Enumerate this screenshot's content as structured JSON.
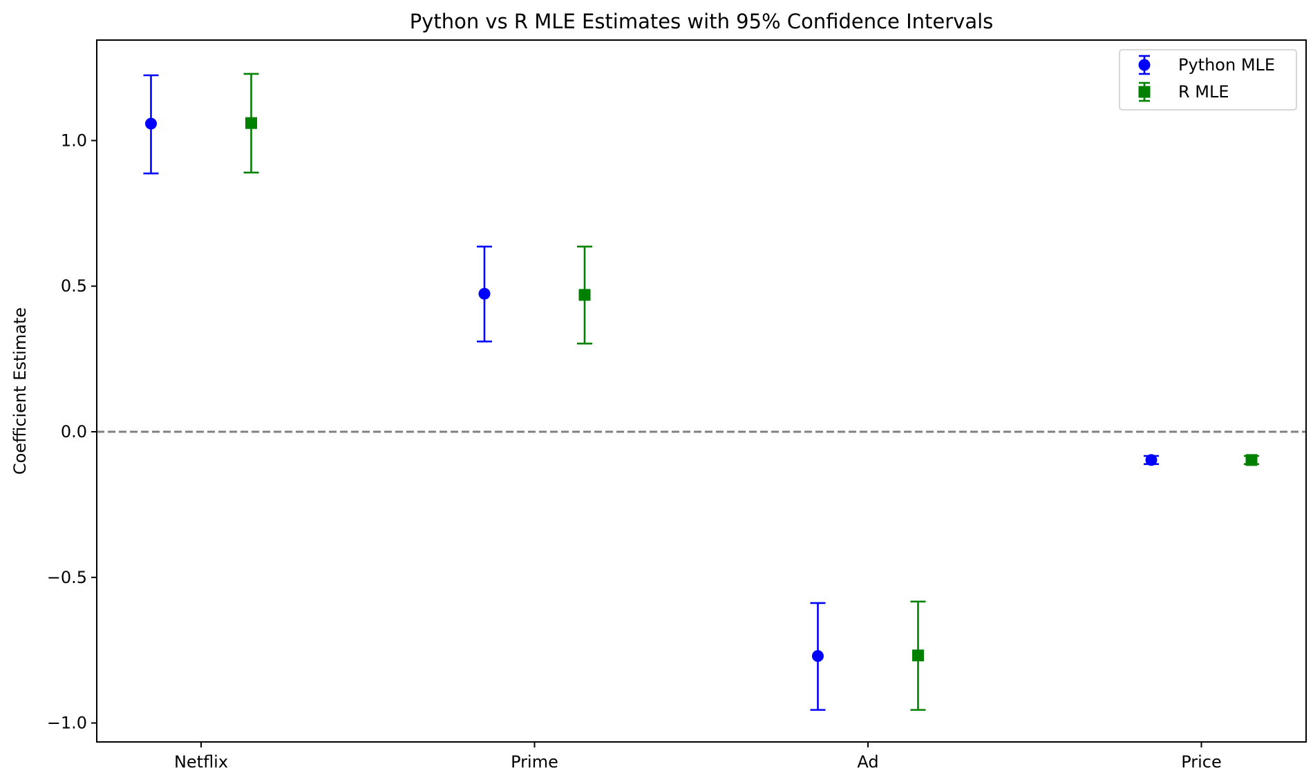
{
  "chart_data": {
    "type": "scatter",
    "title": "Python vs R MLE Estimates with 95% Confidence Intervals",
    "xlabel": "",
    "ylabel": "Coefficient Estimate",
    "categories": [
      "Netflix",
      "Prime",
      "Ad",
      "Price"
    ],
    "ylim": [
      -1.065,
      1.345
    ],
    "yticks": [
      1.0,
      0.5,
      0.0,
      -0.5,
      -1.0
    ],
    "ytick_labels": [
      "1.0",
      "0.5",
      "0.0",
      "−0.5",
      "−1.0"
    ],
    "reference_line": {
      "y": 0.0,
      "style": "dashed",
      "color": "#808080"
    },
    "grid": false,
    "legend_position": "top-right",
    "series": [
      {
        "name": "Python MLE",
        "marker": "circle",
        "color": "#0000ff",
        "values": [
          1.058,
          0.474,
          -0.77,
          -0.097
        ],
        "ci_low": [
          0.887,
          0.31,
          -0.955,
          -0.111
        ],
        "ci_high": [
          1.224,
          0.636,
          -0.588,
          -0.083
        ]
      },
      {
        "name": "R MLE",
        "marker": "square",
        "color": "#008000",
        "values": [
          1.06,
          0.47,
          -0.768,
          -0.097
        ],
        "ci_low": [
          0.89,
          0.303,
          -0.955,
          -0.111
        ],
        "ci_high": [
          1.229,
          0.636,
          -0.583,
          -0.083
        ]
      }
    ]
  }
}
